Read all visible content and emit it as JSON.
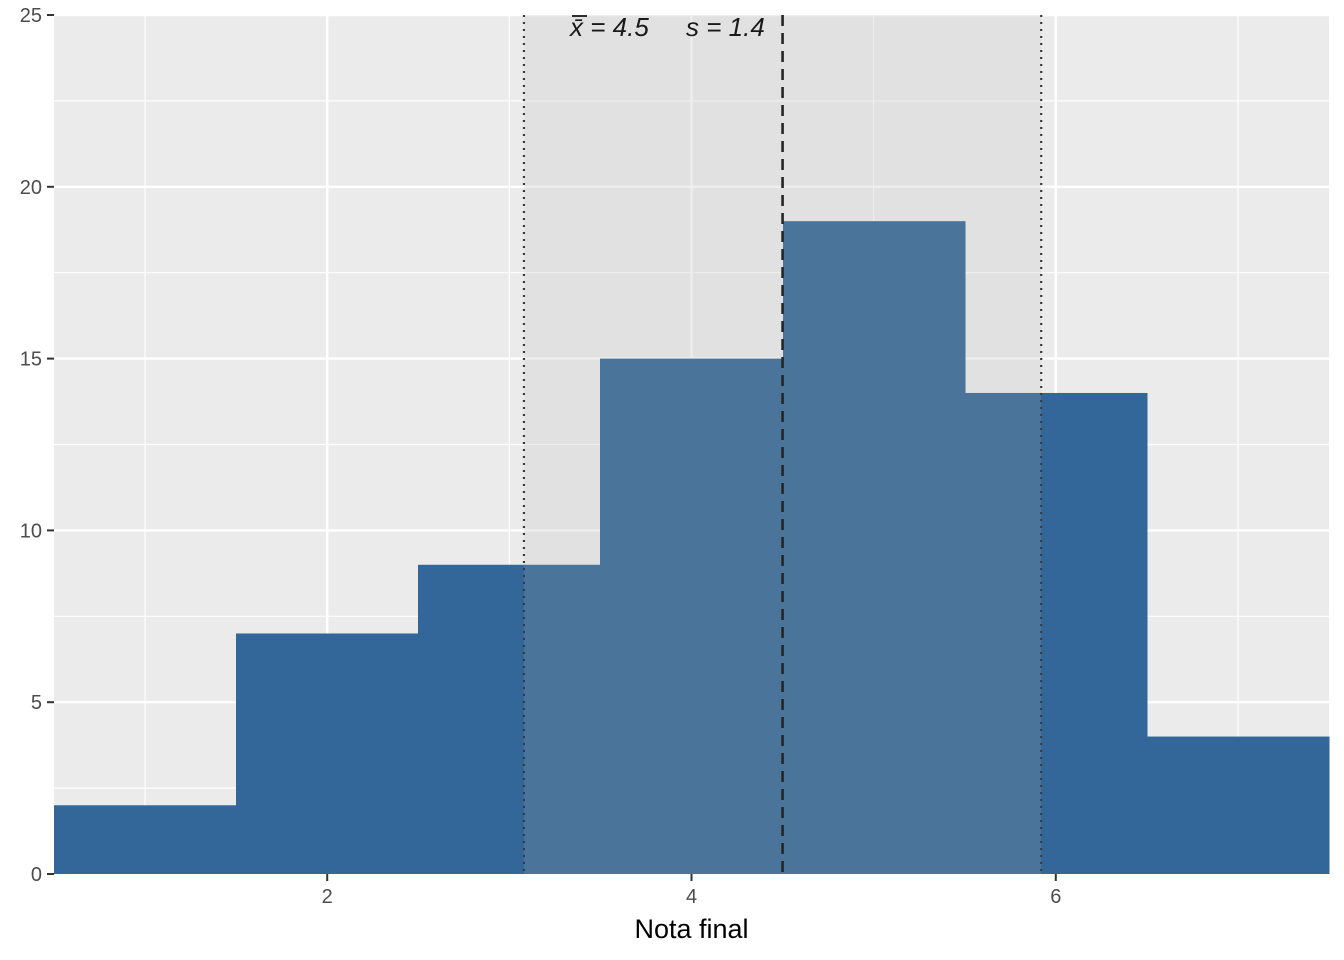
{
  "chart_data": {
    "type": "bar",
    "subtype": "histogram",
    "bins": [
      {
        "x0": 0.5,
        "x1": 1.5,
        "count": 2
      },
      {
        "x0": 1.5,
        "x1": 2.5,
        "count": 7
      },
      {
        "x0": 2.5,
        "x1": 3.5,
        "count": 9
      },
      {
        "x0": 3.5,
        "x1": 4.5,
        "count": 15
      },
      {
        "x0": 4.5,
        "x1": 5.5,
        "count": 19
      },
      {
        "x0": 5.5,
        "x1": 6.5,
        "count": 14
      },
      {
        "x0": 6.5,
        "x1": 7.5,
        "count": 4
      }
    ],
    "xlabel": "Nota final",
    "ylabel": "",
    "xlim": [
      0.5,
      7.5
    ],
    "ylim": [
      0,
      25
    ],
    "xticks": [
      2,
      4,
      6
    ],
    "yticks": [
      0,
      5,
      10,
      15,
      20,
      25
    ],
    "grid": true,
    "mean": 4.5,
    "sd": 1.42,
    "band": [
      3.08,
      5.92
    ],
    "annotation": {
      "mean_label": "x̄ = 4.5",
      "sd_label": "s = 1.4"
    },
    "colors": {
      "bar": "#336699",
      "bar_in_band": "#4b749b",
      "panel": "#ebebeb",
      "band": "#dedede",
      "grid": "#ffffff",
      "mean_line": "#262626"
    }
  }
}
